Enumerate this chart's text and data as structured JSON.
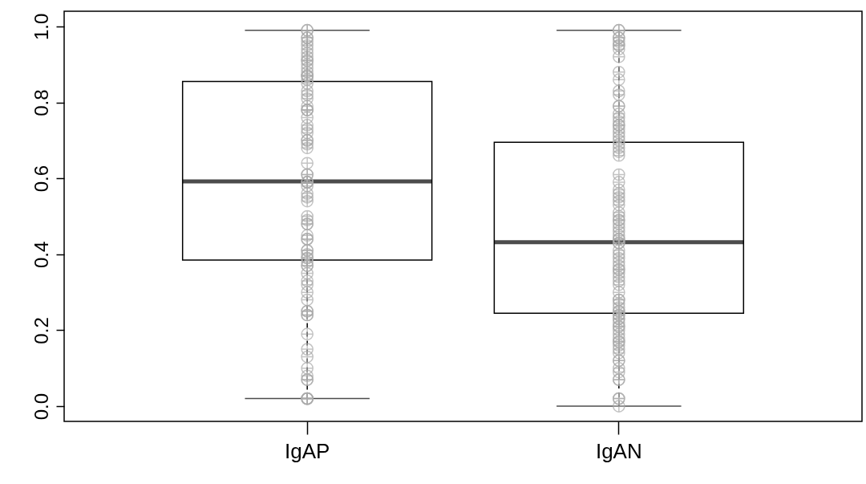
{
  "chart_data": {
    "type": "box",
    "categories": [
      "IgAP",
      "IgAN"
    ],
    "boxes": [
      {
        "low": 0.02,
        "q1": 0.385,
        "median": 0.592,
        "q3": 0.855,
        "high": 0.99
      },
      {
        "low": 0.0,
        "q1": 0.245,
        "median": 0.432,
        "q3": 0.695,
        "high": 0.99
      }
    ],
    "series": [
      {
        "type": "scatter",
        "color": "#aaaaaa",
        "x": [
          "IgAP",
          "IgAP",
          "IgAP",
          "IgAP",
          "IgAP",
          "IgAP",
          "IgAP",
          "IgAP",
          "IgAP",
          "IgAP",
          "IgAP",
          "IgAP",
          "IgAP",
          "IgAP",
          "IgAP",
          "IgAP",
          "IgAP",
          "IgAP",
          "IgAP",
          "IgAP",
          "IgAP",
          "IgAP",
          "IgAP",
          "IgAP",
          "IgAP",
          "IgAP",
          "IgAP",
          "IgAP",
          "IgAP",
          "IgAP",
          "IgAP",
          "IgAP",
          "IgAP",
          "IgAP",
          "IgAP",
          "IgAP",
          "IgAP",
          "IgAP",
          "IgAP",
          "IgAP",
          "IgAP",
          "IgAP",
          "IgAP",
          "IgAP",
          "IgAP",
          "IgAP",
          "IgAP",
          "IgAP",
          "IgAP",
          "IgAP",
          "IgAP",
          "IgAP",
          "IgAP",
          "IgAP",
          "IgAP",
          "IgAP",
          "IgAP",
          "IgAP",
          "IgAP",
          "IgAP",
          "IgAP",
          "IgAP",
          "IgAP",
          "IgAP",
          "IgAP",
          "IgAP",
          "IgAP",
          "IgAP",
          "IgAP",
          "IgAP",
          "IgAP",
          "IgAP",
          "IgAP",
          "IgAP",
          "IgAP",
          "IgAP",
          "IgAP",
          "IgAP",
          "IgAP"
        ],
        "values": [
          0.97,
          0.97,
          0.99,
          0.99,
          0.96,
          0.95,
          0.94,
          0.93,
          0.92,
          0.91,
          0.91,
          0.9,
          0.89,
          0.88,
          0.87,
          0.87,
          0.86,
          0.87,
          0.85,
          0.83,
          0.82,
          0.81,
          0.78,
          0.79,
          0.78,
          0.78,
          0.76,
          0.74,
          0.73,
          0.72,
          0.7,
          0.7,
          0.69,
          0.68,
          0.64,
          0.61,
          0.61,
          0.59,
          0.59,
          0.59,
          0.58,
          0.56,
          0.55,
          0.54,
          0.5,
          0.49,
          0.48,
          0.48,
          0.45,
          0.44,
          0.44,
          0.41,
          0.41,
          0.4,
          0.39,
          0.39,
          0.38,
          0.37,
          0.37,
          0.35,
          0.33,
          0.32,
          0.3,
          0.28,
          0.25,
          0.25,
          0.24,
          0.24,
          0.19,
          0.15,
          0.13,
          0.1,
          0.08,
          0.07,
          0.07,
          0.02,
          0.02,
          0.02,
          0.02
        ]
      },
      {
        "type": "scatter",
        "color": "#aaaaaa",
        "x": [
          "IgAN",
          "IgAN",
          "IgAN",
          "IgAN",
          "IgAN",
          "IgAN",
          "IgAN",
          "IgAN",
          "IgAN",
          "IgAN",
          "IgAN",
          "IgAN",
          "IgAN",
          "IgAN",
          "IgAN",
          "IgAN",
          "IgAN",
          "IgAN",
          "IgAN",
          "IgAN",
          "IgAN",
          "IgAN",
          "IgAN",
          "IgAN",
          "IgAN",
          "IgAN",
          "IgAN",
          "IgAN",
          "IgAN",
          "IgAN",
          "IgAN",
          "IgAN",
          "IgAN",
          "IgAN",
          "IgAN",
          "IgAN",
          "IgAN",
          "IgAN",
          "IgAN",
          "IgAN",
          "IgAN",
          "IgAN",
          "IgAN",
          "IgAN",
          "IgAN",
          "IgAN",
          "IgAN",
          "IgAN",
          "IgAN",
          "IgAN",
          "IgAN",
          "IgAN",
          "IgAN",
          "IgAN",
          "IgAN",
          "IgAN",
          "IgAN",
          "IgAN",
          "IgAN",
          "IgAN",
          "IgAN",
          "IgAN",
          "IgAN",
          "IgAN",
          "IgAN",
          "IgAN",
          "IgAN",
          "IgAN",
          "IgAN",
          "IgAN",
          "IgAN",
          "IgAN",
          "IgAN",
          "IgAN",
          "IgAN",
          "IgAN",
          "IgAN",
          "IgAN",
          "IgAN",
          "IgAN",
          "IgAN",
          "IgAN",
          "IgAN",
          "IgAN",
          "IgAN",
          "IgAN",
          "IgAN",
          "IgAN",
          "IgAN"
        ],
        "values": [
          0.99,
          0.99,
          0.97,
          0.97,
          0.96,
          0.95,
          0.95,
          0.94,
          0.92,
          0.88,
          0.86,
          0.83,
          0.82,
          0.79,
          0.79,
          0.77,
          0.76,
          0.75,
          0.74,
          0.74,
          0.73,
          0.72,
          0.71,
          0.7,
          0.69,
          0.68,
          0.67,
          0.66,
          0.61,
          0.59,
          0.57,
          0.56,
          0.55,
          0.54,
          0.53,
          0.51,
          0.5,
          0.49,
          0.49,
          0.48,
          0.47,
          0.46,
          0.45,
          0.44,
          0.44,
          0.43,
          0.43,
          0.41,
          0.4,
          0.39,
          0.38,
          0.37,
          0.36,
          0.36,
          0.35,
          0.34,
          0.33,
          0.32,
          0.3,
          0.28,
          0.28,
          0.27,
          0.26,
          0.25,
          0.25,
          0.24,
          0.24,
          0.23,
          0.23,
          0.22,
          0.21,
          0.21,
          0.2,
          0.19,
          0.18,
          0.17,
          0.17,
          0.16,
          0.15,
          0.14,
          0.12,
          0.12,
          0.1,
          0.09,
          0.07,
          0.07,
          0.02,
          0.02,
          0.0
        ]
      }
    ],
    "ylim": [
      -0.04,
      1.04
    ],
    "yticks": [
      {
        "value": 0,
        "label": "0.0"
      },
      {
        "value": 0.2,
        "label": "0.2"
      },
      {
        "value": 0.4,
        "label": "0.4"
      },
      {
        "value": 0.6,
        "label": "0.6"
      },
      {
        "value": 0.8,
        "label": "0.8"
      },
      {
        "value": 1,
        "label": "1.0"
      }
    ],
    "marker": "cross",
    "grid": false
  }
}
